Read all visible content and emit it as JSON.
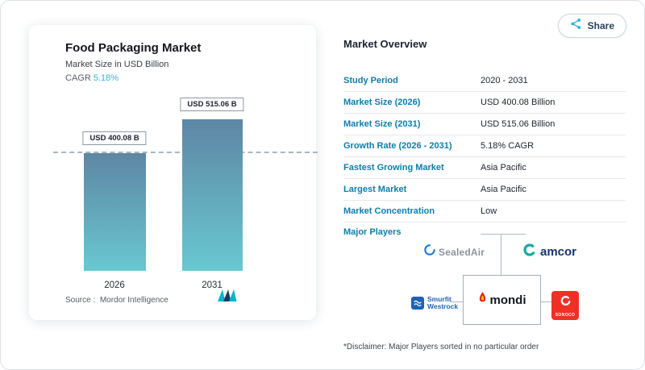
{
  "share": {
    "label": "Share"
  },
  "card": {
    "title": "Food Packaging Market",
    "subtitle": "Market Size in USD Billion",
    "cagr_label": "CAGR",
    "cagr_value": "5.18%",
    "source_label": "Source :",
    "source_value": "Mordor Intelligence"
  },
  "chart_data": {
    "type": "bar",
    "categories": [
      "2026",
      "2031"
    ],
    "values": [
      400.08,
      515.06
    ],
    "bar_labels": [
      "USD 400.08 B",
      "USD 515.06 B"
    ],
    "title": "Food Packaging Market",
    "ylabel": "Market Size in USD Billion",
    "unit": "USD Billion",
    "cagr": "5.18%",
    "ylim": [
      0,
      560
    ],
    "grid": false,
    "legend": "none",
    "annotations": [
      "dashed horizontal reference line at 400.08 level"
    ]
  },
  "overview": {
    "title": "Market Overview",
    "rows": [
      {
        "label": "Study Period",
        "value": "2020 - 2031"
      },
      {
        "label": "Market Size (2026)",
        "value": "USD 400.08 Billion"
      },
      {
        "label": "Market Size (2031)",
        "value": "USD 515.06 Billion"
      },
      {
        "label": "Growth Rate (2026 - 2031)",
        "value": "5.18% CAGR"
      },
      {
        "label": "Fastest Growing Market",
        "value": "Asia Pacific"
      },
      {
        "label": "Largest Market",
        "value": "Asia Pacific"
      },
      {
        "label": "Market Concentration",
        "value": "Low"
      }
    ],
    "major_players_label": "Major Players",
    "players": {
      "sealed_air": "SealedAir",
      "amcor": "amcor",
      "smurfit_line1": "Smurfit",
      "smurfit_line2": "Westrock",
      "mondi": "mondi",
      "sonoco": "SONOCO"
    },
    "disclaimer": "*Disclaimer: Major Players sorted in no particular order"
  },
  "colors": {
    "label_blue": "#0b7ea9",
    "accent_teal": "#2eb8dc",
    "bar_gradient_top": "#5e86a4",
    "bar_gradient_bottom": "#69c8d1",
    "navy": "#27415c",
    "sonoco_red": "#ee3124",
    "smurfit_blue": "#1e62b5"
  }
}
